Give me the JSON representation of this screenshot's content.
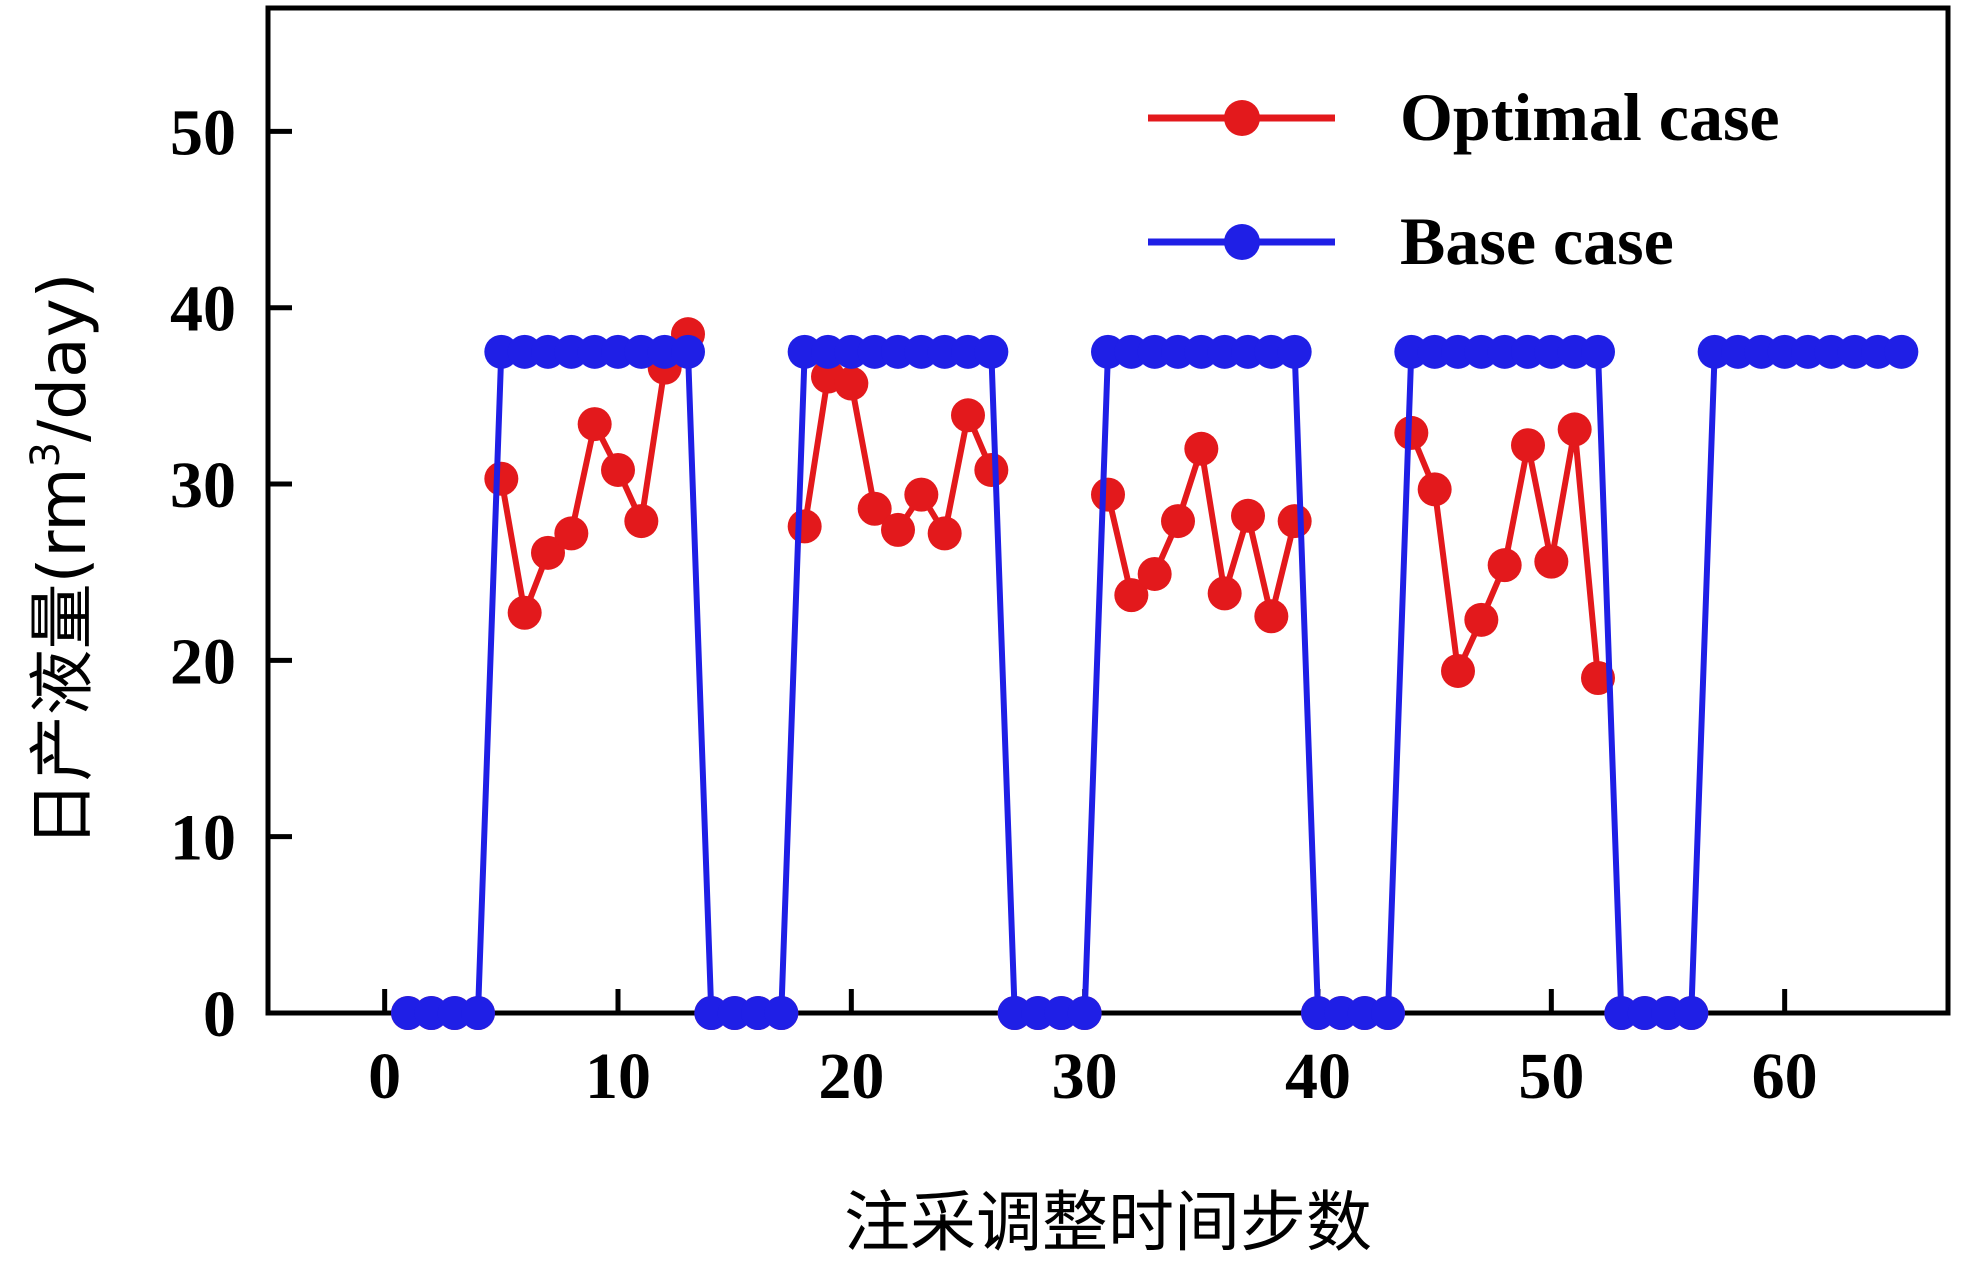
{
  "chart_data": {
    "type": "line",
    "xlabel": "注采调整时间步数",
    "ylabel_main": "日产液量(rm",
    "ylabel_sup": "3",
    "ylabel_tail": "/day)",
    "xlim": [
      -5,
      67
    ],
    "ylim": [
      0,
      57
    ],
    "xticks": [
      0,
      10,
      20,
      30,
      40,
      50,
      60
    ],
    "yticks": [
      0,
      10,
      20,
      30,
      40,
      50
    ],
    "legend_position": "top-right",
    "grid": false,
    "colors": {
      "optimal": "#e3191c",
      "base": "#1f1fe6"
    },
    "series": [
      {
        "name": "Optimal case",
        "key": "optimal",
        "segments": [
          {
            "x": [
              1,
              2,
              3,
              4
            ],
            "y": [
              0,
              0,
              0,
              0
            ]
          },
          {
            "x": [
              5,
              6,
              7,
              8,
              9,
              10,
              11,
              12,
              13
            ],
            "y": [
              30.3,
              22.7,
              26.1,
              27.2,
              33.4,
              30.8,
              27.9,
              36.6,
              38.5
            ]
          },
          {
            "x": [
              14,
              15,
              16,
              17
            ],
            "y": [
              0,
              0,
              0,
              0
            ]
          },
          {
            "x": [
              18,
              19,
              20,
              21,
              22,
              23,
              24,
              25,
              26
            ],
            "y": [
              27.6,
              36.1,
              35.7,
              28.6,
              27.4,
              29.4,
              27.2,
              33.9,
              30.8
            ]
          },
          {
            "x": [
              27,
              28,
              29,
              30
            ],
            "y": [
              0,
              0,
              0,
              0
            ]
          },
          {
            "x": [
              31,
              32,
              33,
              34,
              35,
              36,
              37,
              38,
              39
            ],
            "y": [
              29.4,
              23.7,
              24.9,
              27.9,
              32.0,
              23.8,
              28.2,
              22.5,
              27.9
            ]
          },
          {
            "x": [
              40,
              41,
              42,
              43
            ],
            "y": [
              0,
              0,
              0,
              0
            ]
          },
          {
            "x": [
              44,
              45,
              46,
              47,
              48,
              49,
              50,
              51,
              52
            ],
            "y": [
              32.9,
              29.7,
              19.4,
              22.3,
              25.4,
              32.2,
              25.6,
              33.1,
              19.0
            ]
          },
          {
            "x": [
              53,
              54,
              55,
              56
            ],
            "y": [
              0,
              0,
              0,
              0
            ]
          }
        ]
      },
      {
        "name": "Base case",
        "key": "base",
        "segments": [
          {
            "x": [
              1,
              2,
              3,
              4,
              5,
              6,
              7,
              8,
              9,
              10,
              11,
              12,
              13,
              14,
              15,
              16,
              17,
              18,
              19,
              20,
              21,
              22,
              23,
              24,
              25,
              26,
              27,
              28,
              29,
              30,
              31,
              32,
              33,
              34,
              35,
              36,
              37,
              38,
              39,
              40,
              41,
              42,
              43,
              44,
              45,
              46,
              47,
              48,
              49,
              50,
              51,
              52,
              53,
              54,
              55,
              56,
              57,
              58,
              59,
              60,
              61,
              62,
              63,
              64,
              65
            ],
            "y": [
              0,
              0,
              0,
              0,
              37.5,
              37.5,
              37.5,
              37.5,
              37.5,
              37.5,
              37.5,
              37.5,
              37.5,
              0,
              0,
              0,
              0,
              37.5,
              37.5,
              37.5,
              37.5,
              37.5,
              37.5,
              37.5,
              37.5,
              37.5,
              0,
              0,
              0,
              0,
              37.5,
              37.5,
              37.5,
              37.5,
              37.5,
              37.5,
              37.5,
              37.5,
              37.5,
              0,
              0,
              0,
              0,
              37.5,
              37.5,
              37.5,
              37.5,
              37.5,
              37.5,
              37.5,
              37.5,
              37.5,
              0,
              0,
              0,
              0,
              37.5,
              37.5,
              37.5,
              37.5,
              37.5,
              37.5,
              37.5,
              37.5,
              37.5
            ]
          }
        ]
      }
    ]
  }
}
